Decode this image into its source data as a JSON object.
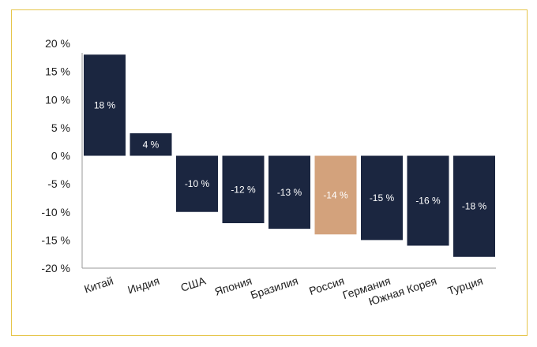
{
  "chart_data": {
    "type": "bar",
    "title": "",
    "xlabel": "",
    "ylabel": "",
    "categories": [
      "Китай",
      "Индия",
      "США",
      "Япония",
      "Бразилия",
      "Россия",
      "Германия",
      "Южная Корея",
      "Турция"
    ],
    "values": [
      18,
      4,
      -10,
      -12,
      -13,
      -14,
      -15,
      -16,
      -18
    ],
    "data_labels": [
      "18 %",
      "4 %",
      "-10 %",
      "-12 %",
      "-13 %",
      "-14 %",
      "-15 %",
      "-16 %",
      "-18 %"
    ],
    "y_ticks": [
      20,
      15,
      10,
      5,
      0,
      -5,
      -10,
      -15,
      -20
    ],
    "y_tick_labels": [
      "20 %",
      "15 %",
      "10 %",
      "5 %",
      "0 %",
      "-5 %",
      "-10 %",
      "-15 %",
      "-20 %"
    ],
    "ylim": [
      -20,
      20
    ],
    "grid": false,
    "legend": "none",
    "colors": {
      "default_bar": "#1b2640",
      "highlight_bar": "#d3a27c",
      "highlight_category": "Россия",
      "frame_border": "#e6c54a",
      "axis": "#9a9a9a"
    }
  }
}
